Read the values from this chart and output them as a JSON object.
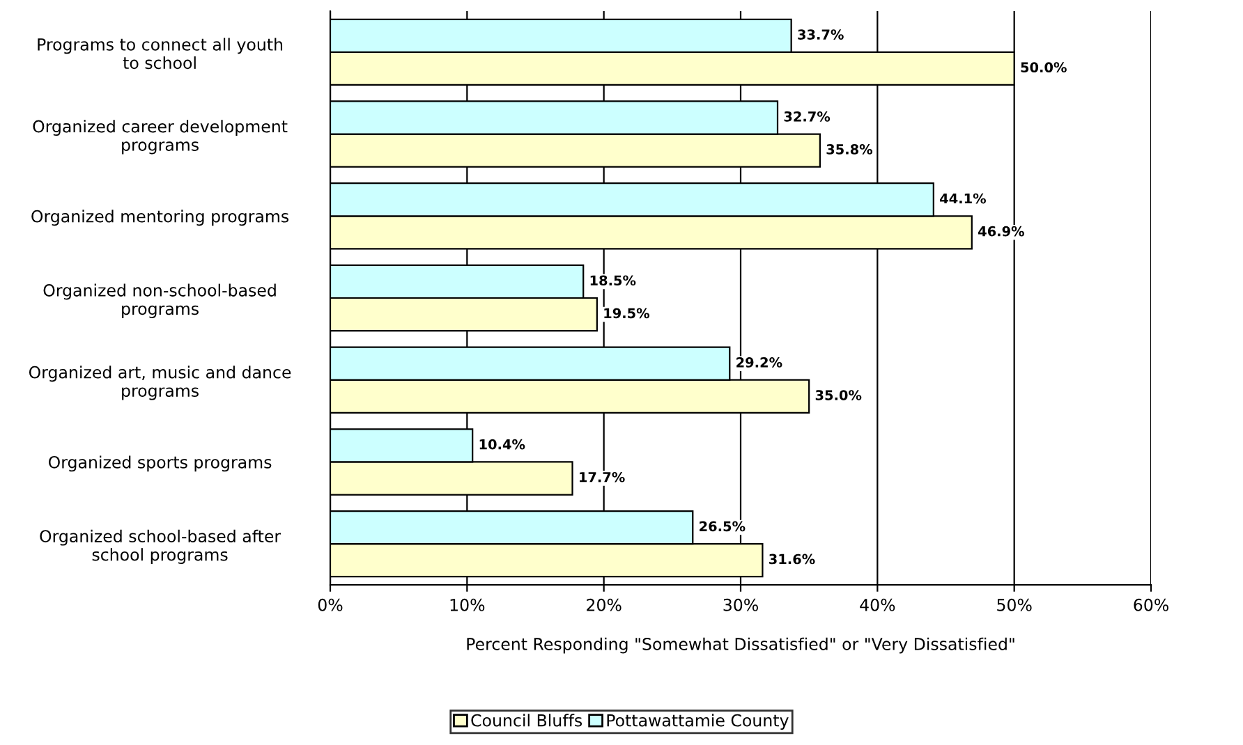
{
  "chart_data": {
    "type": "bar",
    "orientation": "horizontal",
    "xlabel": "Percent Responding \"Somewhat Dissatisfied\" or \"Very Dissatisfied\"",
    "categories": [
      "Programs to connect all youth\nto school",
      "Organized career development\nprograms",
      "Organized mentoring programs",
      "Organized non-school-based\nprograms",
      "Organized art, music and dance\nprograms",
      "Organized sports programs",
      "Organized school-based after\nschool programs"
    ],
    "series": [
      {
        "name": "Council Bluffs",
        "color": "#ffffcc",
        "values": [
          50.0,
          35.8,
          46.9,
          19.5,
          35.0,
          17.7,
          31.6
        ],
        "value_labels": [
          "50.0%",
          "35.8%",
          "46.9%",
          "19.5%",
          "35.0%",
          "17.7%",
          "31.6%"
        ]
      },
      {
        "name": "Pottawattamie County",
        "color": "#ccffff",
        "values": [
          33.7,
          32.7,
          44.1,
          18.5,
          29.2,
          10.4,
          26.5
        ],
        "value_labels": [
          "33.7%",
          "32.7%",
          "44.1%",
          "18.5%",
          "29.2%",
          "10.4%",
          "26.5%"
        ]
      }
    ],
    "xlim": [
      0,
      60
    ],
    "xticks": [
      {
        "value": 0,
        "label": "0%"
      },
      {
        "value": 10,
        "label": "10%"
      },
      {
        "value": 20,
        "label": "20%"
      },
      {
        "value": 30,
        "label": "30%"
      },
      {
        "value": 40,
        "label": "40%"
      },
      {
        "value": 50,
        "label": "50%"
      },
      {
        "value": 60,
        "label": "60%"
      }
    ],
    "grid": "x",
    "legend": "bottom"
  }
}
